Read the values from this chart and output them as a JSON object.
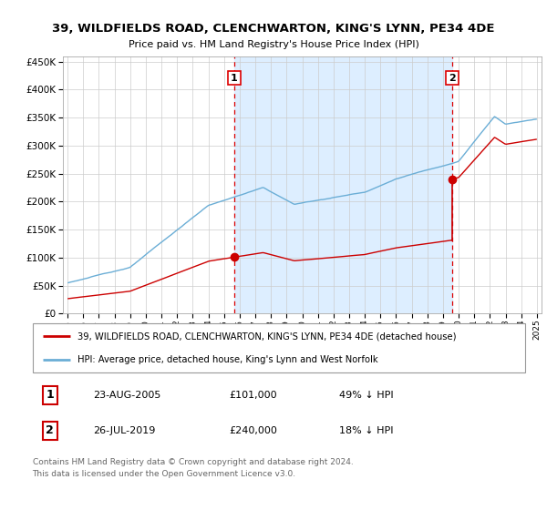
{
  "title": "39, WILDFIELDS ROAD, CLENCHWARTON, KING'S LYNN, PE34 4DE",
  "subtitle": "Price paid vs. HM Land Registry's House Price Index (HPI)",
  "legend_line1": "39, WILDFIELDS ROAD, CLENCHWARTON, KING'S LYNN, PE34 4DE (detached house)",
  "legend_line2": "HPI: Average price, detached house, King's Lynn and West Norfolk",
  "sale1_date": "23-AUG-2005",
  "sale1_price": "£101,000",
  "sale1_hpi": "49% ↓ HPI",
  "sale2_date": "26-JUL-2019",
  "sale2_price": "£240,000",
  "sale2_hpi": "18% ↓ HPI",
  "footer": "Contains HM Land Registry data © Crown copyright and database right 2024.\nThis data is licensed under the Open Government Licence v3.0.",
  "hpi_color": "#6baed6",
  "price_color": "#cc0000",
  "vline_color": "#dd0000",
  "shade_color": "#ddeeff",
  "ylim_max": 460000,
  "ylim_min": 0,
  "sale1_x_year": 2005.65,
  "sale2_x_year": 2019.58,
  "sale1_price_val": 101000,
  "sale2_price_val": 240000,
  "xmin": 1995,
  "xmax": 2025
}
